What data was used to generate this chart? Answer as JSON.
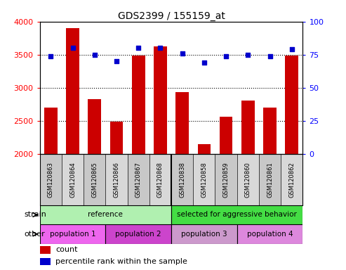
{
  "title": "GDS2399 / 155159_at",
  "samples": [
    "GSM120863",
    "GSM120864",
    "GSM120865",
    "GSM120866",
    "GSM120867",
    "GSM120868",
    "GSM120838",
    "GSM120858",
    "GSM120859",
    "GSM120860",
    "GSM120861",
    "GSM120862"
  ],
  "counts": [
    2700,
    3900,
    2830,
    2490,
    3490,
    3620,
    2930,
    2150,
    2560,
    2800,
    2700,
    3490
  ],
  "percentiles": [
    74,
    80,
    75,
    70,
    80,
    80,
    76,
    69,
    74,
    75,
    74,
    79
  ],
  "ylim_left": [
    2000,
    4000
  ],
  "ylim_right": [
    0,
    100
  ],
  "yticks_left": [
    2000,
    2500,
    3000,
    3500,
    4000
  ],
  "yticks_right": [
    0,
    25,
    50,
    75,
    100
  ],
  "grid_lines": [
    2500,
    3000,
    3500
  ],
  "bar_color": "#cc0000",
  "dot_color": "#0000cc",
  "strain_ref_color": "#b0f0b0",
  "strain_sel_color": "#44dd44",
  "other_pop1_color": "#ee66ee",
  "other_pop2_color": "#dd44dd",
  "other_pop3_color": "#cc99cc",
  "other_pop4_color": "#dd99dd",
  "xlabels_bg": "#c8c8c8",
  "strain_groups": [
    {
      "label": "reference",
      "start": 0,
      "end": 6,
      "color": "#b0f0b0"
    },
    {
      "label": "selected for aggressive behavior",
      "start": 6,
      "end": 12,
      "color": "#44dd44"
    }
  ],
  "other_groups": [
    {
      "label": "population 1",
      "start": 0,
      "end": 3,
      "color": "#ee66ee"
    },
    {
      "label": "population 2",
      "start": 3,
      "end": 6,
      "color": "#cc44cc"
    },
    {
      "label": "population 3",
      "start": 6,
      "end": 9,
      "color": "#cc99cc"
    },
    {
      "label": "population 4",
      "start": 9,
      "end": 12,
      "color": "#dd88dd"
    }
  ],
  "legend_count_color": "#cc0000",
  "legend_dot_color": "#0000cc",
  "legend_count_label": "count",
  "legend_dot_label": "percentile rank within the sample",
  "ref_separator": 5.5
}
